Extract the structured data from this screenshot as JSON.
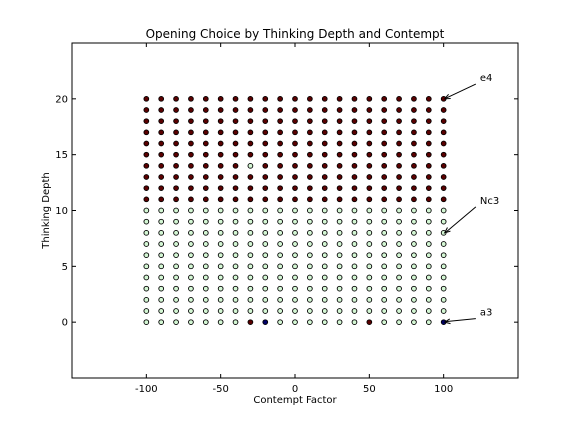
{
  "chart_data": {
    "type": "scatter",
    "title": "Opening Choice by Thinking Depth and Contempt",
    "xlabel": "Contempt Factor",
    "ylabel": "Thinking Depth",
    "xlim": [
      -150,
      150
    ],
    "ylim": [
      -5,
      25
    ],
    "xticks": [
      -100,
      -50,
      0,
      50,
      100
    ],
    "yticks": [
      0,
      5,
      10,
      15,
      20
    ],
    "grid": false,
    "x_values": [
      -100,
      -90,
      -80,
      -70,
      -60,
      -50,
      -40,
      -30,
      -20,
      -10,
      0,
      10,
      20,
      30,
      40,
      50,
      60,
      70,
      80,
      90,
      100
    ],
    "y_values": [
      0,
      1,
      2,
      3,
      4,
      5,
      6,
      7,
      8,
      9,
      10,
      11,
      12,
      13,
      14,
      15,
      16,
      17,
      18,
      19,
      20
    ],
    "default_rule": {
      "e4_min_depth": 11
    },
    "exceptions": [
      {
        "x": -30,
        "y": 14,
        "opening": "Nc3"
      },
      {
        "x": -30,
        "y": 0,
        "opening": "e4"
      },
      {
        "x": -20,
        "y": 0,
        "opening": "a3"
      },
      {
        "x": 50,
        "y": 0,
        "opening": "e4"
      },
      {
        "x": 100,
        "y": 0,
        "opening": "a3"
      }
    ],
    "opening_colors": {
      "e4": "#5a0000",
      "Nc3": "#d4f7d4",
      "a3": "#000066"
    },
    "annotations": [
      {
        "text": "e4",
        "x": 100,
        "y": 20,
        "text_x": 123,
        "text_y": 21.5
      },
      {
        "text": "Nc3",
        "x": 100,
        "y": 8,
        "text_x": 123,
        "text_y": 10.5
      },
      {
        "text": "a3",
        "x": 100,
        "y": 0,
        "text_x": 123,
        "text_y": 0.5
      }
    ]
  }
}
